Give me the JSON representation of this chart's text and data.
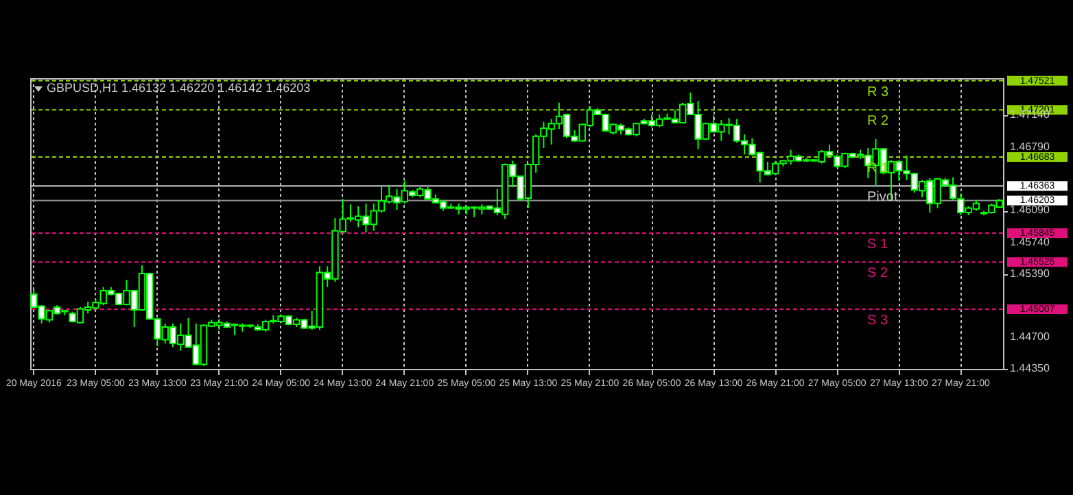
{
  "chart_data": {
    "type": "candlestick",
    "title": "GBPUSD,H1  1.46132 1.46220 1.46142 1.46203",
    "color": "#00ff00",
    "categories": [
      "20 May 2016",
      null,
      null,
      null,
      null,
      null,
      null,
      null,
      "23 May 05:00",
      null,
      null,
      null,
      null,
      null,
      null,
      null,
      "23 May 13:00",
      null,
      null,
      null,
      null,
      null,
      null,
      null,
      "23 May 21:00",
      null,
      null,
      null,
      null,
      null,
      null,
      null,
      "24 May 05:00",
      null,
      null,
      null,
      null,
      null,
      null,
      null,
      "24 May 13:00",
      null,
      null,
      null,
      null,
      null,
      null,
      null,
      "24 May 21:00",
      null,
      null,
      null,
      null,
      null,
      null,
      null,
      "25 May 05:00",
      null,
      null,
      null,
      null,
      null,
      null,
      null,
      "25 May 13:00",
      null,
      null,
      null,
      null,
      null,
      null,
      null,
      "25 May 21:00",
      null,
      null,
      null,
      null,
      null,
      null,
      null,
      "26 May 05:00",
      null,
      null,
      null,
      null,
      null,
      null,
      null,
      "26 May 13:00",
      null,
      null,
      null,
      null,
      null,
      null,
      null,
      "26 May 21:00",
      null,
      null,
      null,
      null,
      null,
      null,
      null,
      "27 May 05:00",
      null,
      null,
      null,
      null,
      null,
      null,
      null,
      "27 May 13:00",
      null,
      null,
      null,
      null,
      null,
      null,
      null,
      "27 May 21:00",
      null,
      null,
      null,
      null,
      null
    ],
    "ohlc": [
      [
        1.4517,
        1.4522,
        1.4502,
        1.4503
      ],
      [
        1.4504,
        1.4505,
        1.4485,
        1.449
      ],
      [
        1.4489,
        1.45,
        1.4486,
        1.4499
      ],
      [
        1.4503,
        1.4505,
        1.4495,
        1.4496
      ],
      [
        1.4499,
        1.45,
        1.4494,
        1.4498
      ],
      [
        1.4496,
        1.4498,
        1.4486,
        1.4487
      ],
      [
        1.4486,
        1.4503,
        1.4485,
        1.4501
      ],
      [
        1.45,
        1.4509,
        1.4496,
        1.4503
      ],
      [
        1.4502,
        1.4512,
        1.45,
        1.4508
      ],
      [
        1.4507,
        1.4525,
        1.4505,
        1.4521
      ],
      [
        1.4521,
        1.4525,
        1.4516,
        1.4517
      ],
      [
        1.4518,
        1.4519,
        1.4505,
        1.4506
      ],
      [
        1.4506,
        1.4533,
        1.4505,
        1.4521
      ],
      [
        1.4521,
        1.4522,
        1.4481,
        1.45
      ],
      [
        1.45,
        1.4549,
        1.4499,
        1.454
      ],
      [
        1.454,
        1.4541,
        1.4489,
        1.449
      ],
      [
        1.449,
        1.4491,
        1.446,
        1.4468
      ],
      [
        1.4467,
        1.4485,
        1.4463,
        1.4481
      ],
      [
        1.4481,
        1.4485,
        1.4459,
        1.4463
      ],
      [
        1.4462,
        1.4485,
        1.4455,
        1.4472
      ],
      [
        1.4472,
        1.4491,
        1.4458,
        1.4459
      ],
      [
        1.4461,
        1.4485,
        1.4439,
        1.444
      ],
      [
        1.444,
        1.4484,
        1.4438,
        1.4483
      ],
      [
        1.4482,
        1.4489,
        1.4481,
        1.4486
      ],
      [
        1.4483,
        1.449,
        1.4478,
        1.4486
      ],
      [
        1.4485,
        1.4487,
        1.448,
        1.4481
      ],
      [
        1.4484,
        1.4485,
        1.4472,
        1.4483
      ],
      [
        1.4482,
        1.4485,
        1.4476,
        1.4483
      ],
      [
        1.4483,
        1.4484,
        1.448,
        1.4482
      ],
      [
        1.4481,
        1.4484,
        1.4477,
        1.4478
      ],
      [
        1.4478,
        1.4489,
        1.4476,
        1.4487
      ],
      [
        1.4487,
        1.4494,
        1.4485,
        1.4488
      ],
      [
        1.4487,
        1.4495,
        1.4485,
        1.4493
      ],
      [
        1.4493,
        1.4494,
        1.4483,
        1.4484
      ],
      [
        1.4484,
        1.4491,
        1.4481,
        1.4489
      ],
      [
        1.4489,
        1.449,
        1.4479,
        1.448
      ],
      [
        1.4482,
        1.4499,
        1.4478,
        1.448
      ],
      [
        1.4481,
        1.4548,
        1.4478,
        1.4541
      ],
      [
        1.4541,
        1.4548,
        1.4525,
        1.4534
      ],
      [
        1.4534,
        1.4601,
        1.4531,
        1.4587
      ],
      [
        1.4586,
        1.4622,
        1.4585,
        1.46
      ],
      [
        1.4601,
        1.4616,
        1.4597,
        1.46
      ],
      [
        1.4599,
        1.4614,
        1.4591,
        1.4603
      ],
      [
        1.4603,
        1.4617,
        1.4585,
        1.4594
      ],
      [
        1.4594,
        1.4617,
        1.4587,
        1.4609
      ],
      [
        1.4609,
        1.4637,
        1.4607,
        1.462
      ],
      [
        1.4619,
        1.4637,
        1.4617,
        1.4625
      ],
      [
        1.4624,
        1.4633,
        1.461,
        1.4618
      ],
      [
        1.4619,
        1.4642,
        1.4617,
        1.4631
      ],
      [
        1.463,
        1.4632,
        1.4624,
        1.4626
      ],
      [
        1.4626,
        1.4635,
        1.4624,
        1.4633
      ],
      [
        1.4632,
        1.4635,
        1.4621,
        1.4622
      ],
      [
        1.4622,
        1.4627,
        1.4617,
        1.4618
      ],
      [
        1.4619,
        1.4621,
        1.4609,
        1.4612
      ],
      [
        1.4613,
        1.4617,
        1.4611,
        1.4612
      ],
      [
        1.4613,
        1.4617,
        1.4605,
        1.4611
      ],
      [
        1.4611,
        1.4615,
        1.4605,
        1.4613
      ],
      [
        1.4612,
        1.4614,
        1.4602,
        1.4613
      ],
      [
        1.4611,
        1.4616,
        1.4605,
        1.4613
      ],
      [
        1.4614,
        1.4615,
        1.461,
        1.4611
      ],
      [
        1.4612,
        1.4633,
        1.4604,
        1.4607
      ],
      [
        1.4605,
        1.4661,
        1.46,
        1.466
      ],
      [
        1.466,
        1.4664,
        1.4635,
        1.4647
      ],
      [
        1.4647,
        1.4648,
        1.462,
        1.4622
      ],
      [
        1.4623,
        1.4661,
        1.4612,
        1.466
      ],
      [
        1.466,
        1.4693,
        1.4651,
        1.4691
      ],
      [
        1.4691,
        1.4707,
        1.4678,
        1.47
      ],
      [
        1.4699,
        1.471,
        1.4682,
        1.4705
      ],
      [
        1.4705,
        1.4728,
        1.4699,
        1.4713
      ],
      [
        1.4715,
        1.4716,
        1.4689,
        1.4691
      ],
      [
        1.4691,
        1.4698,
        1.4685,
        1.4686
      ],
      [
        1.4686,
        1.4705,
        1.4685,
        1.4704
      ],
      [
        1.4703,
        1.4724,
        1.4701,
        1.472
      ],
      [
        1.472,
        1.4722,
        1.4714,
        1.4715
      ],
      [
        1.4715,
        1.4716,
        1.4696,
        1.4697
      ],
      [
        1.4695,
        1.4705,
        1.4693,
        1.4704
      ],
      [
        1.4703,
        1.4705,
        1.4693,
        1.4698
      ],
      [
        1.4699,
        1.4701,
        1.4692,
        1.4693
      ],
      [
        1.4693,
        1.4706,
        1.4691,
        1.4705
      ],
      [
        1.4708,
        1.471,
        1.4704,
        1.4705
      ],
      [
        1.4708,
        1.4715,
        1.4701,
        1.4703
      ],
      [
        1.4703,
        1.4715,
        1.4701,
        1.471
      ],
      [
        1.471,
        1.4716,
        1.4709,
        1.4711
      ],
      [
        1.471,
        1.472,
        1.4705,
        1.4706
      ],
      [
        1.4706,
        1.4728,
        1.4705,
        1.4726
      ],
      [
        1.4727,
        1.4739,
        1.4714,
        1.4715
      ],
      [
        1.4715,
        1.473,
        1.4677,
        1.4688
      ],
      [
        1.4688,
        1.4706,
        1.4687,
        1.4705
      ],
      [
        1.4705,
        1.4714,
        1.4695,
        1.4696
      ],
      [
        1.4696,
        1.4709,
        1.4686,
        1.4704
      ],
      [
        1.4704,
        1.4711,
        1.4693,
        1.4703
      ],
      [
        1.4703,
        1.471,
        1.4684,
        1.4686
      ],
      [
        1.4686,
        1.4693,
        1.4671,
        1.4682
      ],
      [
        1.4682,
        1.4689,
        1.467,
        1.4671
      ],
      [
        1.4673,
        1.4674,
        1.464,
        1.4653
      ],
      [
        1.4653,
        1.4663,
        1.4648,
        1.4649
      ],
      [
        1.465,
        1.4664,
        1.4648,
        1.4661
      ],
      [
        1.4661,
        1.4665,
        1.4658,
        1.4664
      ],
      [
        1.4664,
        1.4676,
        1.466,
        1.4669
      ],
      [
        1.4669,
        1.4671,
        1.4663,
        1.4664
      ],
      [
        1.4664,
        1.4667,
        1.4663,
        1.4665
      ],
      [
        1.4664,
        1.4666,
        1.4663,
        1.4665
      ],
      [
        1.4663,
        1.4676,
        1.4661,
        1.4674
      ],
      [
        1.4674,
        1.4682,
        1.4669,
        1.467
      ],
      [
        1.4669,
        1.4671,
        1.4656,
        1.4658
      ],
      [
        1.4658,
        1.4673,
        1.4656,
        1.4672
      ],
      [
        1.4672,
        1.4673,
        1.4667,
        1.4668
      ],
      [
        1.4671,
        1.4676,
        1.4666,
        1.467
      ],
      [
        1.467,
        1.4678,
        1.4645,
        1.4659
      ],
      [
        1.4659,
        1.4688,
        1.4637,
        1.4677
      ],
      [
        1.4677,
        1.4678,
        1.4649,
        1.4651
      ],
      [
        1.4651,
        1.4665,
        1.462,
        1.4663
      ],
      [
        1.4663,
        1.4665,
        1.4642,
        1.4653
      ],
      [
        1.4653,
        1.467,
        1.4643,
        1.465
      ],
      [
        1.465,
        1.4651,
        1.4629,
        1.4632
      ],
      [
        1.4631,
        1.4643,
        1.4624,
        1.4641
      ],
      [
        1.4642,
        1.4645,
        1.4607,
        1.4617
      ],
      [
        1.4617,
        1.4645,
        1.4612,
        1.4644
      ],
      [
        1.4643,
        1.4645,
        1.4635,
        1.4637
      ],
      [
        1.4637,
        1.4646,
        1.4621,
        1.4623
      ],
      [
        1.4622,
        1.4628,
        1.4604,
        1.4607
      ],
      [
        1.4607,
        1.4614,
        1.4604,
        1.4612
      ],
      [
        1.4611,
        1.4621,
        1.4609,
        1.4617
      ],
      [
        1.4606,
        1.4609,
        1.4604,
        1.4607
      ],
      [
        1.4607,
        1.4617,
        1.4606,
        1.4615
      ],
      [
        1.46132,
        1.4622,
        1.46132,
        1.46203
      ]
    ],
    "ylim": [
      1.4435,
      1.4755
    ],
    "yticks": [
      {
        "value": 1.4435,
        "label": "1.44350"
      },
      {
        "value": 1.447,
        "label": "1.44700"
      },
      {
        "value": 1.4539,
        "label": "1.45390"
      },
      {
        "value": 1.4574,
        "label": "1.45740"
      },
      {
        "value": 1.4609,
        "label": "1.46090"
      },
      {
        "value": 1.4679,
        "label": "1.46790"
      },
      {
        "value": 1.4714,
        "label": "1.47140"
      }
    ],
    "annotations": [
      "1.47521",
      "1.47201",
      "1.46683",
      "1.46363",
      "1.46203",
      "1.45845",
      "1.45525",
      "1.45007"
    ],
    "ref_lines": [
      {
        "axis": "y",
        "value": 1.47521,
        "label": "R 3",
        "color": "#8fd400",
        "line_style": "dashed"
      },
      {
        "axis": "y",
        "value": 1.47201,
        "label": "R 2",
        "color": "#8fd400",
        "line_style": "dashed"
      },
      {
        "axis": "y",
        "value": 1.46683,
        "label": "R 1",
        "color": "#8fd400",
        "line_style": "dashed"
      },
      {
        "axis": "y",
        "value": 1.46363,
        "label": "Pivot",
        "color": "#c8c8c8",
        "line_style": "solid"
      },
      {
        "axis": "y",
        "value": 1.46203,
        "label": null,
        "color": "#909090",
        "line_style": "solid"
      },
      {
        "axis": "y",
        "value": 1.45845,
        "label": "S 1",
        "color": "#e0107a",
        "line_style": "dashed"
      },
      {
        "axis": "y",
        "value": 1.45525,
        "label": "S 2",
        "color": "#e0107a",
        "line_style": "dashed"
      },
      {
        "axis": "y",
        "value": 1.45007,
        "label": "S 3",
        "color": "#e0107a",
        "line_style": "dashed"
      }
    ],
    "grid": "x"
  }
}
